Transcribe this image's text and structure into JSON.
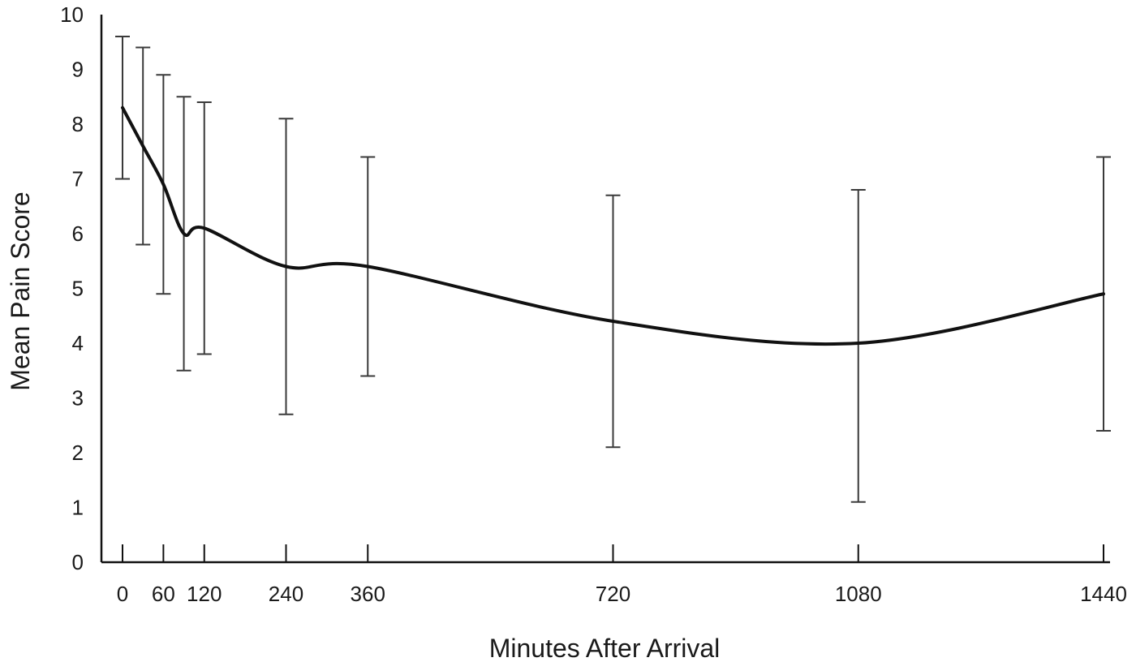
{
  "chart_data": {
    "type": "line",
    "title": "",
    "xlabel": "Minutes After Arrival",
    "ylabel": "Mean Pain Score",
    "xlim": [
      0,
      1440
    ],
    "ylim": [
      0,
      10
    ],
    "x_ticks": [
      0,
      60,
      120,
      240,
      360,
      720,
      1080,
      1440
    ],
    "y_ticks": [
      0,
      1,
      2,
      3,
      4,
      5,
      6,
      7,
      8,
      9,
      10
    ],
    "grid": false,
    "series": [
      {
        "x": [
          0,
          30,
          60,
          90,
          120,
          240,
          360,
          720,
          1080,
          1440
        ],
        "y": [
          8.3,
          7.6,
          6.9,
          6.0,
          6.1,
          5.4,
          5.4,
          4.4,
          4.0,
          4.9
        ],
        "error_low": [
          7.0,
          5.8,
          4.9,
          3.5,
          3.8,
          2.7,
          3.4,
          2.1,
          1.1,
          2.4
        ],
        "error_high": [
          9.6,
          9.4,
          8.9,
          8.5,
          8.4,
          8.1,
          7.4,
          6.7,
          6.8,
          7.4
        ]
      }
    ],
    "colors": {
      "line": "#111111",
      "error_bar": "#3a3a3a",
      "axis": "#111111"
    }
  }
}
